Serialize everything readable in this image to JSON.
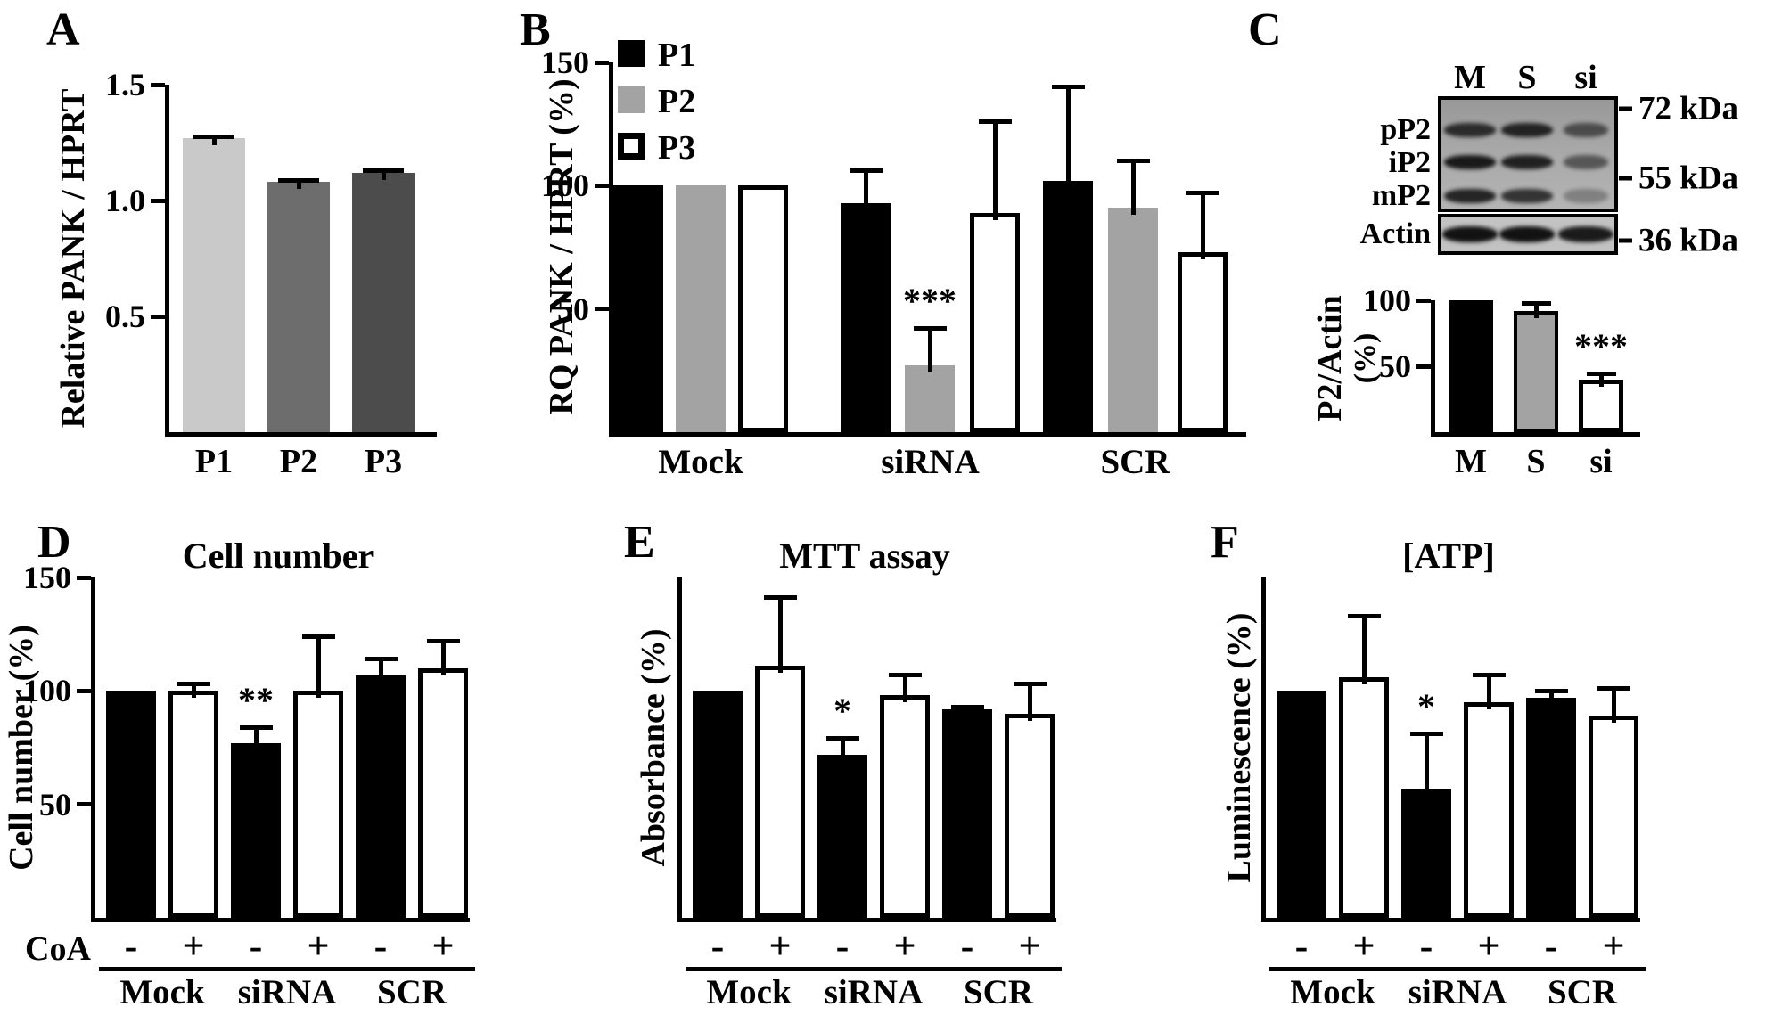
{
  "panels": {
    "A": {
      "label": "A"
    },
    "B": {
      "label": "B"
    },
    "C": {
      "label": "C"
    },
    "D": {
      "label": "D"
    },
    "E": {
      "label": "E"
    },
    "F": {
      "label": "F"
    }
  },
  "blot": {
    "lane_labels": [
      "M",
      "S",
      "si"
    ],
    "rows": [
      {
        "label": "pP2",
        "bands": [
          0.82,
          0.88,
          0.6
        ]
      },
      {
        "label": "iP2",
        "bands": [
          0.95,
          0.9,
          0.55
        ]
      },
      {
        "label": "mP2",
        "bands": [
          0.88,
          0.78,
          0.3
        ]
      },
      {
        "label": "Actin",
        "bands": [
          1.0,
          1.0,
          0.95
        ]
      }
    ],
    "mw_markers": [
      "72 kDa",
      "55 kDa",
      "36 kDa"
    ]
  },
  "chart_data": [
    {
      "id": "A",
      "type": "bar",
      "xaxis": "categories",
      "title": "",
      "ylabel": "Relative PANK / HPRT",
      "ylim": [
        0,
        1.5
      ],
      "yticks": [
        0.5,
        1,
        1.5
      ],
      "ytick_labels": [
        "0.5",
        "1.0",
        "1.5"
      ],
      "categories": [
        "P1",
        "P2",
        "P3"
      ],
      "values": [
        1.27,
        1.08,
        1.12
      ],
      "errors": [
        0.015,
        0.015,
        0.02
      ],
      "colors": [
        "#c9c9c9",
        "#6d6d6d",
        "#4c4c4c"
      ]
    },
    {
      "id": "B",
      "type": "bar",
      "xaxis": "groups",
      "title": "",
      "ylabel": "RQ PANK / HPRT (%)",
      "ylim": [
        0,
        150
      ],
      "yticks": [
        50,
        100,
        150
      ],
      "ytick_labels": [
        "50",
        "100",
        "150"
      ],
      "groups": [
        "Mock",
        "siRNA",
        "SCR"
      ],
      "series": [
        {
          "name": "P1",
          "color": "#000000",
          "values": [
            100,
            93,
            102
          ],
          "errors": [
            0,
            14,
            39
          ]
        },
        {
          "name": "P2",
          "color": "#a3a3a3",
          "values": [
            100,
            27,
            91
          ],
          "errors": [
            0,
            16,
            20
          ]
        },
        {
          "name": "P3",
          "color": "#ffffff",
          "values": [
            100,
            89,
            73
          ],
          "errors": [
            0,
            38,
            25
          ]
        }
      ],
      "legend": [
        {
          "label": "P1",
          "color": "#000000"
        },
        {
          "label": "P2",
          "color": "#a3a3a3"
        },
        {
          "label": "P3",
          "color": "#ffffff"
        }
      ],
      "sig": [
        {
          "group": "siRNA",
          "series": "P2",
          "label": "***"
        }
      ]
    },
    {
      "id": "C",
      "type": "bar",
      "xaxis": "categories",
      "title": "",
      "ylabel": "P2/Actin",
      "ylabel2": "(%)",
      "ylim": [
        0,
        100
      ],
      "yticks": [
        50,
        100
      ],
      "ytick_labels": [
        "50",
        "100"
      ],
      "categories": [
        "M",
        "S",
        "si"
      ],
      "values": [
        100,
        92,
        40
      ],
      "errors": [
        0,
        7,
        6
      ],
      "colors": [
        "#000000",
        "#a3a3a3",
        "#ffffff"
      ],
      "outline_gray": true,
      "sig": [
        {
          "category": "si",
          "label": "***"
        }
      ]
    },
    {
      "id": "D",
      "type": "bar",
      "xaxis": "pairs",
      "title": "Cell number",
      "ylabel": "Cell number (%)",
      "row_label": "CoA",
      "ylim": [
        0,
        150
      ],
      "yticks": [
        50,
        100,
        150
      ],
      "ytick_labels": [
        "50",
        "100",
        "150"
      ],
      "groups": [
        "Mock",
        "siRNA",
        "SCR"
      ],
      "series": [
        {
          "name": "-",
          "color": "#000000",
          "values": [
            100,
            77,
            107
          ],
          "errors": [
            0,
            8,
            8
          ]
        },
        {
          "name": "+",
          "color": "#ffffff",
          "values": [
            100,
            100,
            110
          ],
          "errors": [
            4,
            25,
            13
          ]
        }
      ],
      "sig": [
        {
          "group": "siRNA",
          "series": "-",
          "label": "**"
        }
      ]
    },
    {
      "id": "E",
      "type": "bar",
      "xaxis": "pairs",
      "title": "MTT assay",
      "ylabel": "Absorbance (%)",
      "ylim": [
        0,
        150
      ],
      "yticks": [],
      "ytick_labels": [],
      "groups": [
        "Mock",
        "siRNA",
        "SCR"
      ],
      "series": [
        {
          "name": "-",
          "color": "#000000",
          "values": [
            100,
            72,
            92
          ],
          "errors": [
            0,
            8,
            2
          ]
        },
        {
          "name": "+",
          "color": "#ffffff",
          "values": [
            111,
            98,
            90
          ],
          "errors": [
            31,
            10,
            14
          ]
        }
      ],
      "sig": [
        {
          "group": "siRNA",
          "series": "-",
          "label": "*"
        }
      ]
    },
    {
      "id": "F",
      "type": "bar",
      "xaxis": "pairs",
      "title": "[ATP]",
      "ylabel": "Luminescence (%)",
      "ylim": [
        0,
        150
      ],
      "yticks": [],
      "ytick_labels": [],
      "groups": [
        "Mock",
        "siRNA",
        "SCR"
      ],
      "series": [
        {
          "name": "-",
          "color": "#000000",
          "values": [
            100,
            57,
            97
          ],
          "errors": [
            0,
            25,
            4
          ]
        },
        {
          "name": "+",
          "color": "#ffffff",
          "values": [
            106,
            95,
            89
          ],
          "errors": [
            28,
            13,
            13
          ]
        }
      ],
      "sig": [
        {
          "group": "siRNA",
          "series": "-",
          "label": "*"
        }
      ]
    }
  ]
}
